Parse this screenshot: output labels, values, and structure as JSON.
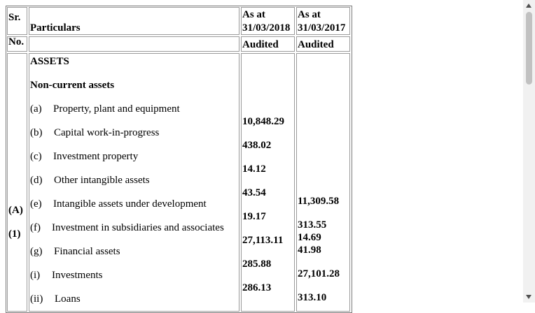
{
  "header": {
    "sr": "Sr.",
    "no": "No.",
    "particulars": "Particulars",
    "col1_line1": "As at",
    "col1_line2": "31/03/2018",
    "col2_line1": "As at",
    "col2_line2": "31/03/2017",
    "col1_status": "Audited",
    "col2_status": "Audited"
  },
  "section": {
    "code_a": "(A)",
    "code_1": "(1)",
    "assets": "ASSETS",
    "noncurrent": "Non-current assets"
  },
  "items": [
    {
      "key": "(a)",
      "label": "Property, plant and equipment"
    },
    {
      "key": "(b)",
      "label": "Capital work-in-progress"
    },
    {
      "key": "(c)",
      "label": "Investment property"
    },
    {
      "key": "(d)",
      "label": "Other intangible assets"
    },
    {
      "key": "(e)",
      "label": "Intangible assets under development"
    },
    {
      "key": "(f)",
      "label": "Investment in subsidiaries and associates"
    },
    {
      "key": "(g)",
      "label": "Financial assets"
    },
    {
      "key": "(i)",
      "label": "Investments"
    },
    {
      "key": "(ii)",
      "label": "Loans"
    }
  ],
  "values_2018": [
    "10,848.29",
    "438.02",
    "14.12",
    "43.54",
    "19.17",
    "27,113.11",
    "285.88",
    "286.13"
  ],
  "values_2017": [
    "11,309.58",
    "313.55",
    "14.69",
    "41.98",
    "27,101.28",
    "313.10"
  ]
}
